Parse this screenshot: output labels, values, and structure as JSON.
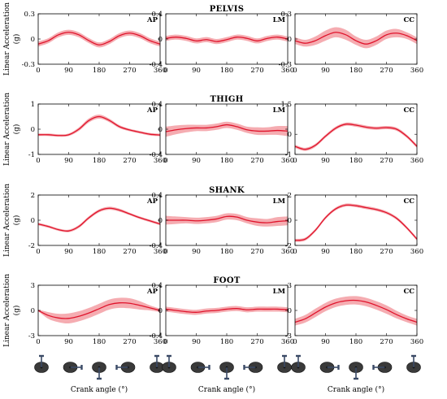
{
  "figure": {
    "y_axis_label": "Linear Acceleration",
    "y_axis_unit": "(g)",
    "x_axis_label": "Crank angle (°)",
    "row_titles": [
      "PELVIS",
      "THIGH",
      "SHANK",
      "FOOT"
    ],
    "direction_tags": [
      "AP",
      "LM",
      "CC"
    ],
    "colors": {
      "mean": "#e0142c",
      "band": "#f4a3a8"
    },
    "crank_icon": "bicycle-crank-icon",
    "crank_positions_deg": [
      0,
      90,
      180,
      270,
      360
    ]
  },
  "chart_data": [
    {
      "type": "line",
      "row": "PELVIS",
      "tag": "AP",
      "xlim": [
        0,
        360
      ],
      "ylim": [
        -0.3,
        0.3
      ],
      "xticks": [
        "0",
        "90",
        "180",
        "270",
        "360"
      ],
      "yticks": [
        "0.3",
        "0",
        "-0.3"
      ],
      "x": [
        0,
        30,
        60,
        90,
        120,
        150,
        180,
        210,
        240,
        270,
        300,
        330,
        360
      ],
      "mean": [
        -0.06,
        -0.02,
        0.05,
        0.08,
        0.05,
        -0.02,
        -0.07,
        -0.03,
        0.04,
        0.07,
        0.04,
        -0.02,
        -0.06
      ],
      "sd": [
        0.03,
        0.03,
        0.03,
        0.03,
        0.03,
        0.03,
        0.03,
        0.03,
        0.03,
        0.03,
        0.03,
        0.03,
        0.03
      ]
    },
    {
      "type": "line",
      "row": "PELVIS",
      "tag": "LM",
      "xlim": [
        0,
        360
      ],
      "ylim": [
        -0.4,
        0.4
      ],
      "xticks": [
        "0",
        "90",
        "180",
        "270",
        "360"
      ],
      "yticks": [
        "0.4",
        "0",
        "-0.4"
      ],
      "x": [
        0,
        30,
        60,
        90,
        120,
        150,
        180,
        210,
        240,
        270,
        300,
        330,
        360
      ],
      "mean": [
        0.01,
        0.03,
        0.01,
        -0.03,
        -0.01,
        -0.04,
        -0.01,
        0.03,
        0.01,
        -0.03,
        0.01,
        0.03,
        0.0
      ],
      "sd": [
        0.04,
        0.04,
        0.04,
        0.04,
        0.04,
        0.04,
        0.04,
        0.04,
        0.04,
        0.04,
        0.04,
        0.04,
        0.04
      ]
    },
    {
      "type": "line",
      "row": "PELVIS",
      "tag": "CC",
      "xlim": [
        0,
        360
      ],
      "ylim": [
        -0.3,
        0.3
      ],
      "xticks": [
        "0",
        "90",
        "180",
        "270",
        "360"
      ],
      "yticks": [
        "0.3",
        "0",
        "-0.3"
      ],
      "x": [
        0,
        30,
        60,
        90,
        120,
        150,
        180,
        210,
        240,
        270,
        300,
        330,
        360
      ],
      "mean": [
        -0.02,
        -0.05,
        -0.02,
        0.04,
        0.08,
        0.05,
        -0.02,
        -0.06,
        -0.02,
        0.05,
        0.07,
        0.04,
        -0.02
      ],
      "sd": [
        0.04,
        0.04,
        0.05,
        0.06,
        0.06,
        0.06,
        0.05,
        0.05,
        0.05,
        0.05,
        0.05,
        0.04,
        0.04
      ]
    },
    {
      "type": "line",
      "row": "THIGH",
      "tag": "AP",
      "xlim": [
        0,
        360
      ],
      "ylim": [
        -1,
        1
      ],
      "xticks": [
        "0",
        "90",
        "180",
        "270",
        "360"
      ],
      "yticks": [
        "1",
        "0",
        "-1"
      ],
      "x": [
        0,
        30,
        60,
        90,
        120,
        150,
        180,
        210,
        240,
        270,
        300,
        330,
        360
      ],
      "mean": [
        -0.22,
        -0.22,
        -0.25,
        -0.22,
        0.0,
        0.35,
        0.5,
        0.35,
        0.1,
        -0.03,
        -0.12,
        -0.2,
        -0.23
      ],
      "sd": [
        0.05,
        0.05,
        0.05,
        0.05,
        0.07,
        0.08,
        0.08,
        0.07,
        0.06,
        0.05,
        0.05,
        0.05,
        0.05
      ]
    },
    {
      "type": "line",
      "row": "THIGH",
      "tag": "LM",
      "xlim": [
        0,
        360
      ],
      "ylim": [
        -0.4,
        0.4
      ],
      "xticks": [
        "0",
        "90",
        "180",
        "270",
        "360"
      ],
      "yticks": [
        "0.4",
        "0",
        "-0.4"
      ],
      "x": [
        0,
        30,
        60,
        90,
        120,
        150,
        180,
        210,
        240,
        270,
        300,
        330,
        360
      ],
      "mean": [
        -0.04,
        -0.01,
        0.01,
        0.02,
        0.02,
        0.04,
        0.07,
        0.04,
        -0.01,
        -0.03,
        -0.03,
        -0.02,
        -0.03
      ],
      "sd": [
        0.08,
        0.07,
        0.06,
        0.05,
        0.05,
        0.05,
        0.05,
        0.05,
        0.05,
        0.06,
        0.06,
        0.07,
        0.08
      ]
    },
    {
      "type": "line",
      "row": "THIGH",
      "tag": "CC",
      "xlim": [
        0,
        360
      ],
      "ylim": [
        -1,
        1.5
      ],
      "xticks": [
        "0",
        "90",
        "180",
        "270",
        "360"
      ],
      "yticks": [
        "1.5",
        "0",
        "-1"
      ],
      "x": [
        0,
        30,
        60,
        90,
        120,
        150,
        180,
        210,
        240,
        270,
        300,
        330,
        360
      ],
      "mean": [
        -0.6,
        -0.75,
        -0.55,
        -0.1,
        0.3,
        0.5,
        0.45,
        0.35,
        0.3,
        0.33,
        0.25,
        -0.1,
        -0.6
      ],
      "sd": [
        0.08,
        0.08,
        0.08,
        0.08,
        0.08,
        0.08,
        0.08,
        0.08,
        0.08,
        0.08,
        0.08,
        0.08,
        0.08
      ]
    },
    {
      "type": "line",
      "row": "SHANK",
      "tag": "AP",
      "xlim": [
        0,
        360
      ],
      "ylim": [
        -2,
        2
      ],
      "xticks": [
        "0",
        "90",
        "180",
        "270",
        "360"
      ],
      "yticks": [
        "2",
        "0",
        "-2"
      ],
      "x": [
        0,
        30,
        60,
        90,
        120,
        150,
        180,
        210,
        240,
        270,
        300,
        330,
        360
      ],
      "mean": [
        -0.3,
        -0.5,
        -0.75,
        -0.85,
        -0.5,
        0.2,
        0.75,
        0.95,
        0.8,
        0.5,
        0.2,
        -0.05,
        -0.3
      ],
      "sd": [
        0.1,
        0.1,
        0.1,
        0.1,
        0.12,
        0.12,
        0.12,
        0.12,
        0.12,
        0.1,
        0.1,
        0.1,
        0.1
      ]
    },
    {
      "type": "line",
      "row": "SHANK",
      "tag": "LM",
      "xlim": [
        0,
        360
      ],
      "ylim": [
        -0.4,
        0.4
      ],
      "xticks": [
        "0",
        "90",
        "180",
        "270",
        "360"
      ],
      "yticks": [
        "0.4",
        "0",
        "-0.4"
      ],
      "x": [
        0,
        30,
        60,
        90,
        120,
        150,
        180,
        210,
        240,
        270,
        300,
        330,
        360
      ],
      "mean": [
        0.0,
        0.0,
        0.0,
        -0.01,
        0.0,
        0.02,
        0.06,
        0.05,
        0.0,
        -0.03,
        -0.04,
        -0.02,
        -0.01
      ],
      "sd": [
        0.07,
        0.06,
        0.05,
        0.05,
        0.05,
        0.05,
        0.05,
        0.05,
        0.05,
        0.06,
        0.06,
        0.07,
        0.07
      ]
    },
    {
      "type": "line",
      "row": "SHANK",
      "tag": "CC",
      "xlim": [
        0,
        360
      ],
      "ylim": [
        -2,
        2
      ],
      "xticks": [
        "0",
        "90",
        "180",
        "270",
        "360"
      ],
      "yticks": [
        "2",
        "0",
        "-2"
      ],
      "x": [
        0,
        30,
        60,
        90,
        120,
        150,
        180,
        210,
        240,
        270,
        300,
        330,
        360
      ],
      "mean": [
        -1.6,
        -1.5,
        -0.8,
        0.2,
        0.9,
        1.2,
        1.15,
        1.0,
        0.85,
        0.6,
        0.15,
        -0.6,
        -1.5
      ],
      "sd": [
        0.12,
        0.12,
        0.12,
        0.12,
        0.12,
        0.12,
        0.12,
        0.12,
        0.12,
        0.12,
        0.12,
        0.12,
        0.12
      ]
    },
    {
      "type": "line",
      "row": "FOOT",
      "tag": "AP",
      "xlim": [
        0,
        360
      ],
      "ylim": [
        -3,
        3
      ],
      "xticks": [
        "0",
        "90",
        "180",
        "270",
        "360"
      ],
      "yticks": [
        "3",
        "0",
        "-3"
      ],
      "x": [
        0,
        30,
        60,
        90,
        120,
        150,
        180,
        210,
        240,
        270,
        300,
        330,
        360
      ],
      "mean": [
        0.0,
        -0.6,
        -0.9,
        -0.95,
        -0.7,
        -0.3,
        0.2,
        0.7,
        0.9,
        0.85,
        0.6,
        0.3,
        0.0
      ],
      "sd": [
        0.1,
        0.4,
        0.5,
        0.6,
        0.6,
        0.6,
        0.6,
        0.6,
        0.6,
        0.6,
        0.5,
        0.3,
        0.2
      ]
    },
    {
      "type": "line",
      "row": "FOOT",
      "tag": "LM",
      "xlim": [
        0,
        360
      ],
      "ylim": [
        -0.4,
        0.4
      ],
      "xticks": [
        "0",
        "90",
        "180",
        "270",
        "360"
      ],
      "yticks": [
        "0.4",
        "0",
        "-0.4"
      ],
      "x": [
        0,
        30,
        60,
        90,
        120,
        150,
        180,
        210,
        240,
        270,
        300,
        330,
        360
      ],
      "mean": [
        0.02,
        0.0,
        -0.02,
        -0.03,
        -0.01,
        0.0,
        0.02,
        0.03,
        0.01,
        0.02,
        0.02,
        0.02,
        0.01
      ],
      "sd": [
        0.04,
        0.04,
        0.04,
        0.04,
        0.04,
        0.04,
        0.04,
        0.04,
        0.04,
        0.04,
        0.04,
        0.04,
        0.04
      ]
    },
    {
      "type": "line",
      "row": "FOOT",
      "tag": "CC",
      "xlim": [
        0,
        360
      ],
      "ylim": [
        -3,
        3
      ],
      "xticks": [
        "0",
        "90",
        "180",
        "270",
        "360"
      ],
      "yticks": [
        "3",
        "0",
        "-3"
      ],
      "x": [
        0,
        30,
        60,
        90,
        120,
        150,
        180,
        210,
        240,
        270,
        300,
        330,
        360
      ],
      "mean": [
        -1.4,
        -1.0,
        -0.3,
        0.4,
        0.9,
        1.15,
        1.2,
        1.0,
        0.6,
        0.1,
        -0.5,
        -1.0,
        -1.4
      ],
      "sd": [
        0.4,
        0.45,
        0.5,
        0.5,
        0.5,
        0.5,
        0.5,
        0.5,
        0.5,
        0.5,
        0.45,
        0.4,
        0.4
      ]
    }
  ]
}
